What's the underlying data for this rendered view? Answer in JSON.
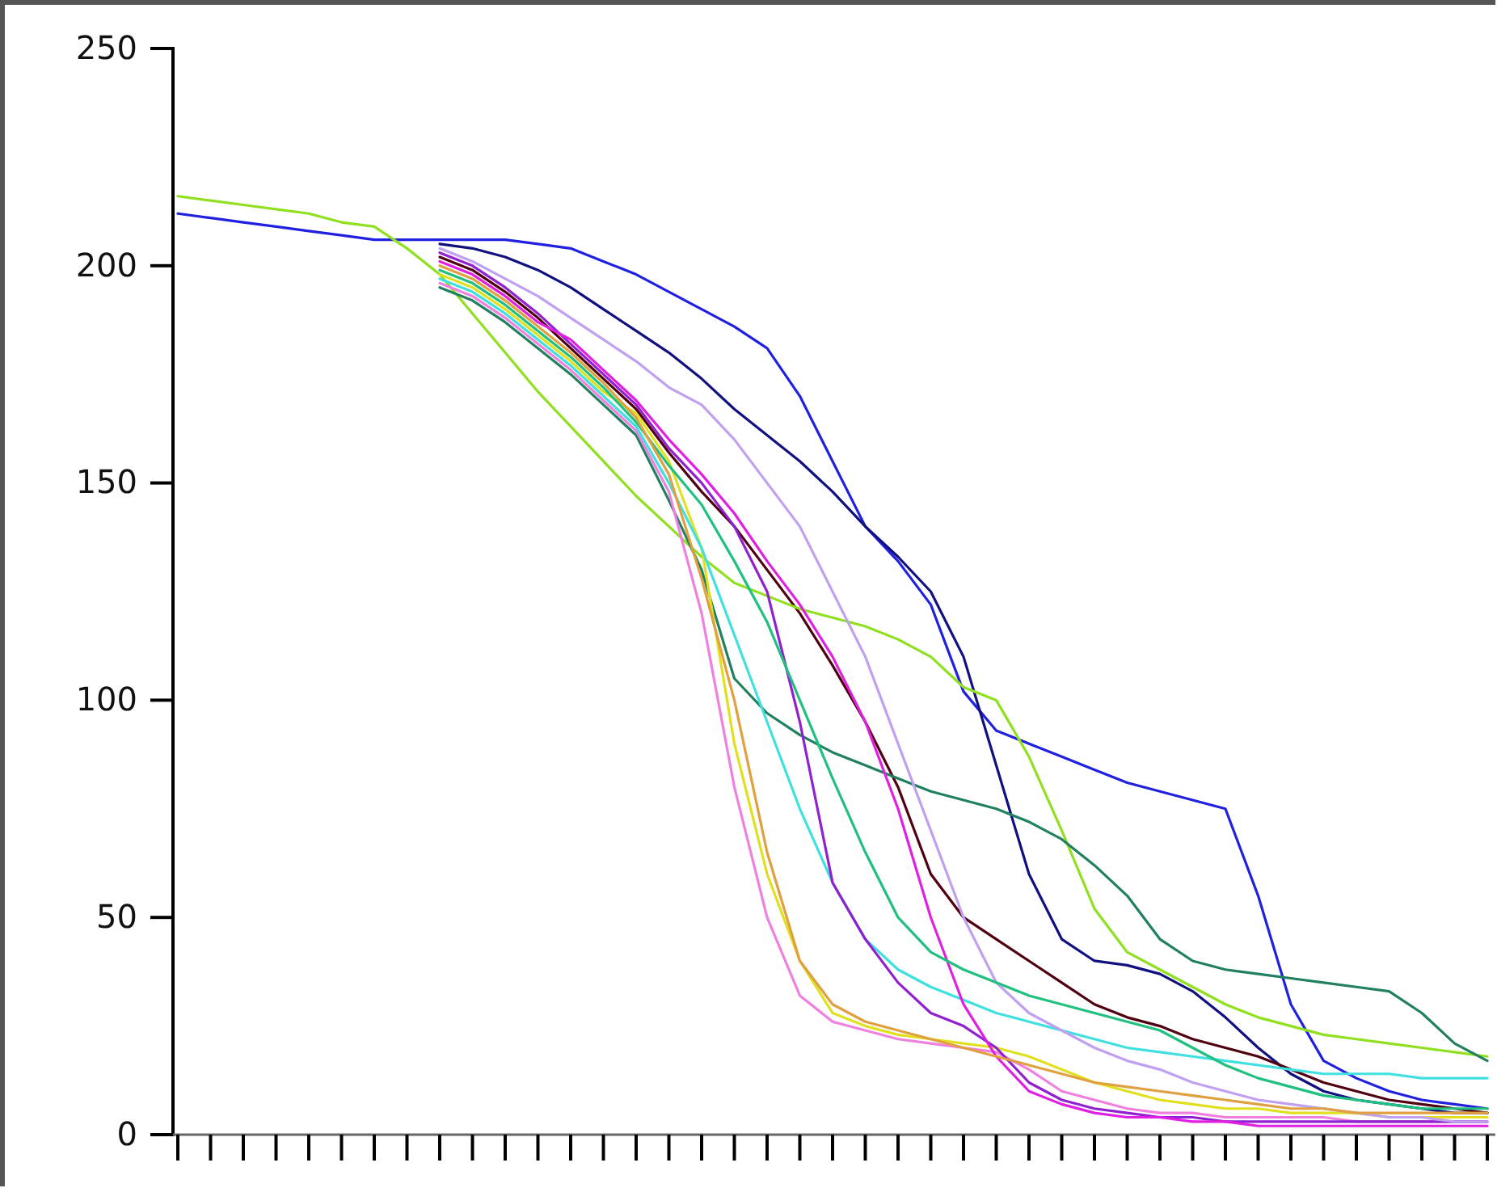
{
  "chart_data": {
    "type": "line",
    "ylim": [
      0,
      250
    ],
    "yticks": [
      0,
      50,
      100,
      150,
      200,
      250
    ],
    "tick_labels": "y",
    "categories": [
      null,
      null,
      null,
      null,
      null,
      null,
      null,
      null,
      null,
      null,
      null,
      null,
      null,
      null,
      null,
      null,
      null,
      null,
      null,
      null,
      null,
      null,
      null,
      null,
      null,
      null,
      null,
      null,
      null,
      null,
      null,
      null,
      null,
      null,
      null,
      null,
      null,
      null,
      null,
      null,
      null
    ],
    "series": [
      {
        "color": "#2020e0",
        "values": [
          212,
          211,
          210,
          209,
          208,
          207,
          206,
          206,
          206,
          206,
          206,
          205,
          204,
          201,
          198,
          194,
          190,
          186,
          181,
          170,
          155,
          140,
          132,
          122,
          102,
          93,
          90,
          87,
          84,
          81,
          79,
          77,
          75,
          55,
          30,
          17,
          13,
          10,
          8,
          7,
          6
        ]
      },
      {
        "color": "#101080",
        "values": [
          null,
          null,
          null,
          null,
          null,
          null,
          null,
          null,
          205,
          204,
          202,
          199,
          195,
          190,
          185,
          180,
          174,
          167,
          161,
          155,
          148,
          140,
          133,
          125,
          110,
          85,
          60,
          45,
          40,
          39,
          37,
          33,
          27,
          20,
          14,
          10,
          8,
          7,
          6,
          5,
          5
        ]
      },
      {
        "color": "#500010",
        "values": [
          null,
          null,
          null,
          null,
          null,
          null,
          null,
          null,
          202,
          199,
          194,
          188,
          181,
          174,
          167,
          157,
          148,
          140,
          130,
          120,
          108,
          95,
          80,
          60,
          50,
          45,
          40,
          35,
          30,
          27,
          25,
          22,
          20,
          18,
          15,
          12,
          10,
          8,
          7,
          6,
          5
        ]
      },
      {
        "color": "#90e020",
        "values": [
          216,
          215,
          214,
          213,
          212,
          210,
          209,
          204,
          198,
          189,
          180,
          171,
          163,
          155,
          147,
          140,
          133,
          127,
          124,
          121,
          119,
          117,
          114,
          110,
          103,
          100,
          87,
          70,
          52,
          42,
          38,
          34,
          30,
          27,
          25,
          23,
          22,
          21,
          20,
          19,
          18
        ]
      },
      {
        "color": "#208060",
        "values": [
          null,
          null,
          null,
          null,
          null,
          null,
          null,
          null,
          195,
          192,
          187,
          181,
          175,
          168,
          161,
          146,
          130,
          105,
          97,
          92,
          88,
          85,
          82,
          79,
          77,
          75,
          72,
          68,
          62,
          55,
          45,
          40,
          38,
          37,
          36,
          35,
          34,
          33,
          28,
          21,
          17
        ]
      },
      {
        "color": "#e0e020",
        "values": [
          null,
          null,
          null,
          null,
          null,
          null,
          null,
          null,
          198,
          195,
          190,
          184,
          178,
          171,
          166,
          155,
          135,
          90,
          60,
          40,
          28,
          25,
          23,
          22,
          21,
          20,
          18,
          15,
          12,
          10,
          8,
          7,
          6,
          6,
          5,
          5,
          5,
          4,
          4,
          4,
          4
        ]
      },
      {
        "color": "#f080e0",
        "values": [
          null,
          null,
          null,
          null,
          null,
          null,
          null,
          null,
          196,
          193,
          188,
          182,
          176,
          169,
          162,
          148,
          120,
          80,
          50,
          32,
          26,
          24,
          22,
          21,
          20,
          19,
          15,
          10,
          8,
          6,
          5,
          5,
          4,
          4,
          4,
          4,
          3,
          3,
          3,
          3,
          3
        ]
      },
      {
        "color": "#40e0e0",
        "values": [
          null,
          null,
          null,
          null,
          null,
          null,
          null,
          null,
          197,
          194,
          189,
          183,
          177,
          170,
          163,
          150,
          135,
          115,
          95,
          75,
          58,
          45,
          38,
          34,
          31,
          28,
          26,
          24,
          22,
          20,
          19,
          18,
          17,
          16,
          15,
          14,
          14,
          14,
          13,
          13,
          13
        ]
      },
      {
        "color": "#9020d0",
        "values": [
          null,
          null,
          null,
          null,
          null,
          null,
          null,
          null,
          203,
          200,
          195,
          189,
          182,
          175,
          168,
          158,
          150,
          140,
          125,
          95,
          58,
          45,
          35,
          28,
          25,
          20,
          12,
          8,
          6,
          5,
          4,
          4,
          3,
          3,
          3,
          3,
          3,
          3,
          3,
          3,
          3
        ]
      },
      {
        "color": "#e020e0",
        "values": [
          null,
          null,
          null,
          null,
          null,
          null,
          null,
          null,
          201,
          198,
          193,
          187,
          183,
          176,
          169,
          160,
          152,
          143,
          132,
          122,
          110,
          95,
          75,
          50,
          30,
          18,
          10,
          7,
          5,
          4,
          4,
          3,
          3,
          2,
          2,
          2,
          2,
          2,
          2,
          2,
          2
        ]
      },
      {
        "color": "#c0a0f0",
        "values": [
          null,
          null,
          null,
          null,
          null,
          null,
          null,
          null,
          204,
          201,
          197,
          193,
          188,
          183,
          178,
          172,
          168,
          160,
          150,
          140,
          125,
          110,
          90,
          70,
          50,
          35,
          28,
          24,
          20,
          17,
          15,
          12,
          10,
          8,
          7,
          6,
          5,
          4,
          4,
          3,
          3
        ]
      },
      {
        "color": "#20c080",
        "values": [
          null,
          null,
          null,
          null,
          null,
          null,
          null,
          null,
          199,
          196,
          191,
          185,
          179,
          172,
          164,
          154,
          145,
          132,
          118,
          100,
          82,
          65,
          50,
          42,
          38,
          35,
          32,
          30,
          28,
          26,
          24,
          20,
          16,
          13,
          11,
          9,
          8,
          7,
          6,
          6,
          6
        ]
      },
      {
        "color": "#e0a040",
        "values": [
          null,
          null,
          null,
          null,
          null,
          null,
          null,
          null,
          200,
          197,
          192,
          186,
          180,
          173,
          165,
          152,
          128,
          100,
          65,
          40,
          30,
          26,
          24,
          22,
          20,
          18,
          16,
          14,
          12,
          11,
          10,
          9,
          8,
          7,
          6,
          6,
          5,
          5,
          5,
          5,
          5
        ]
      }
    ]
  }
}
